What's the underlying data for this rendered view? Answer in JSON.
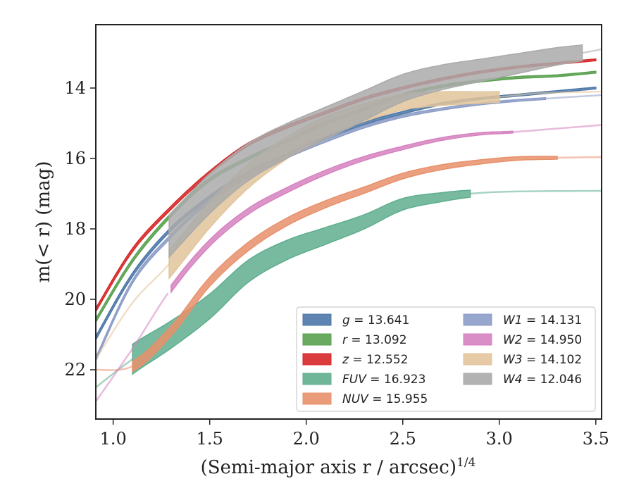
{
  "chart_data": {
    "type": "line",
    "xlabel": "(Semi-major axis r / arcsec)",
    "xlabel_sup": "1/4",
    "ylabel_pre": "m(< r) (mag)",
    "xlim": [
      0.91,
      3.53
    ],
    "ylim": [
      23.4,
      12.2
    ],
    "y_inverted": true,
    "x_ticks": [
      "1.0",
      "1.5",
      "2.0",
      "2.5",
      "3.0",
      "3.5"
    ],
    "x_tick_values": [
      1.0,
      1.5,
      2.0,
      2.5,
      3.0,
      3.5
    ],
    "y_ticks": [
      "14",
      "16",
      "18",
      "20",
      "22"
    ],
    "y_tick_values": [
      14,
      16,
      18,
      20,
      22
    ],
    "grid": false,
    "legend_placement": "lower-right",
    "series": [
      {
        "name": "g = 13.641",
        "label_var": "g",
        "label_val": "= 13.641",
        "color": "#4c78a8",
        "x": [
          0.91,
          1.1,
          1.3,
          1.5,
          1.7,
          1.9,
          2.1,
          2.3,
          2.5,
          2.7,
          2.9,
          3.1,
          3.3,
          3.5
        ],
        "y": [
          21.1,
          19.3,
          18.0,
          17.1,
          16.4,
          15.9,
          15.4,
          15.0,
          14.7,
          14.45,
          14.3,
          14.2,
          14.1,
          14.0
        ],
        "obs_end": 3.5,
        "width": [
          0.1,
          0.05
        ]
      },
      {
        "name": "r = 13.092",
        "label_var": "r",
        "label_val": "= 13.092",
        "color": "#59a14f",
        "x": [
          0.91,
          1.1,
          1.3,
          1.5,
          1.7,
          1.9,
          2.1,
          2.3,
          2.5,
          2.7,
          2.9,
          3.1,
          3.3,
          3.5
        ],
        "y": [
          20.6,
          18.9,
          17.6,
          16.6,
          16.0,
          15.5,
          15.0,
          14.6,
          14.2,
          13.95,
          13.8,
          13.7,
          13.65,
          13.55
        ],
        "obs_end": 3.5,
        "width": [
          0.1,
          0.05
        ]
      },
      {
        "name": "z = 12.552",
        "label_var": "z",
        "label_val": "= 12.552",
        "color": "#d62728",
        "x": [
          0.91,
          1.1,
          1.3,
          1.5,
          1.7,
          1.9,
          2.1,
          2.3,
          2.5,
          2.7,
          2.9,
          3.1,
          3.3,
          3.5
        ],
        "y": [
          20.3,
          18.6,
          17.4,
          16.4,
          15.6,
          15.1,
          14.7,
          14.3,
          14.0,
          13.75,
          13.55,
          13.4,
          13.3,
          13.2
        ],
        "obs_end": 3.5,
        "width": [
          0.1,
          0.05
        ]
      },
      {
        "name": "FUV = 16.923",
        "label_var": "FUV",
        "label_val": "= 16.923",
        "color": "#5fae8e",
        "x": [
          0.91,
          1.1,
          1.3,
          1.5,
          1.7,
          1.9,
          2.1,
          2.3,
          2.5,
          2.7,
          2.85,
          3.0,
          3.2,
          3.53
        ],
        "y": [
          22.5,
          21.7,
          21.0,
          20.2,
          19.2,
          18.6,
          18.2,
          17.8,
          17.3,
          17.1,
          17.0,
          16.95,
          16.93,
          16.92
        ],
        "obs_start": 1.1,
        "obs_end": 2.85,
        "width": [
          0.85,
          0.2
        ]
      },
      {
        "name": "NUV = 15.955",
        "label_var": "NUV",
        "label_val": "= 15.955",
        "color": "#e8906b",
        "x": [
          0.91,
          1.1,
          1.3,
          1.5,
          1.7,
          1.9,
          2.1,
          2.3,
          2.5,
          2.7,
          2.9,
          3.1,
          3.3,
          3.53
        ],
        "y": [
          22.0,
          21.9,
          20.9,
          19.5,
          18.5,
          17.8,
          17.3,
          16.9,
          16.5,
          16.25,
          16.1,
          16.0,
          15.98,
          15.96
        ],
        "obs_start": 1.1,
        "obs_end": 3.3,
        "width": [
          0.3,
          0.08
        ]
      },
      {
        "name": "W1 = 14.131",
        "label_var": "W1",
        "label_val": "= 14.131",
        "color": "#8c9cc6",
        "x": [
          0.91,
          1.1,
          1.3,
          1.5,
          1.7,
          1.9,
          2.1,
          2.3,
          2.5,
          2.7,
          2.9,
          3.1,
          3.24,
          3.53
        ],
        "y": [
          21.7,
          19.5,
          18.2,
          17.2,
          16.5,
          15.95,
          15.5,
          15.1,
          14.8,
          14.6,
          14.45,
          14.35,
          14.3,
          14.2
        ],
        "obs_end": 3.24,
        "width": [
          0.1,
          0.05
        ]
      },
      {
        "name": "W2 = 14.950",
        "label_var": "W2",
        "label_val": "= 14.950",
        "color": "#d682c0",
        "x": [
          0.91,
          1.1,
          1.3,
          1.5,
          1.7,
          1.9,
          2.1,
          2.3,
          2.5,
          2.7,
          2.9,
          3.07,
          3.3,
          3.53
        ],
        "y": [
          22.9,
          21.4,
          19.7,
          18.4,
          17.5,
          16.9,
          16.4,
          16.0,
          15.7,
          15.45,
          15.3,
          15.25,
          15.15,
          15.05
        ],
        "obs_start": 1.29,
        "obs_end": 3.07,
        "width": [
          0.2,
          0.05
        ]
      },
      {
        "name": "W3 = 14.102",
        "label_var": "W3",
        "label_val": "= 14.102",
        "color": "#e2c49b",
        "x": [
          0.91,
          1.1,
          1.29,
          1.5,
          1.7,
          1.9,
          2.1,
          2.3,
          2.5,
          2.7,
          3.0,
          3.2,
          3.53
        ],
        "y": [
          21.7,
          20.1,
          19.0,
          17.6,
          16.5,
          15.7,
          15.1,
          14.7,
          14.4,
          14.3,
          14.25,
          14.15,
          14.1
        ],
        "obs_start": 1.29,
        "obs_end": 3.0,
        "width": [
          0.8,
          0.3
        ]
      },
      {
        "name": "W4 = 12.046",
        "label_var": "W4",
        "label_val": "= 12.046",
        "color": "#aaaaaa",
        "x": [
          1.29,
          1.5,
          1.7,
          1.9,
          2.1,
          2.3,
          2.5,
          2.7,
          2.9,
          3.1,
          3.3,
          3.43,
          3.53
        ],
        "y": [
          18.2,
          17.0,
          16.1,
          15.5,
          15.0,
          14.5,
          14.0,
          13.7,
          13.5,
          13.3,
          13.1,
          13.0,
          12.9
        ],
        "obs_start": 1.29,
        "obs_end": 3.43,
        "width": [
          1.2,
          0.45
        ]
      }
    ]
  }
}
